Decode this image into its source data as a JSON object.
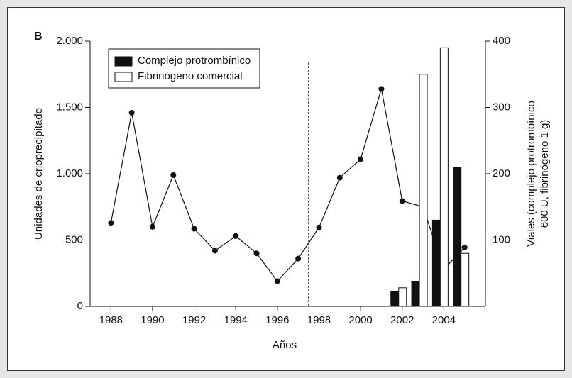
{
  "chart_data": {
    "type": "line-bar",
    "panel_label": "B",
    "x_label": "Años",
    "y_label": "Unidades de crioprecipitado",
    "y2_label": [
      "Viales (complejo protrombínico",
      "600 U, fibrinógeno 1 g)"
    ],
    "xlim": [
      1987,
      2006
    ],
    "xticks": [
      1988,
      1990,
      1992,
      1994,
      1996,
      1998,
      2000,
      2002,
      2004
    ],
    "ylim": [
      0,
      2000
    ],
    "yticks": [
      0,
      500,
      {
        "value": 1000,
        "label": "1.000"
      },
      {
        "value": 1500,
        "label": "1.500"
      },
      {
        "value": 2000,
        "label": "2.000"
      }
    ],
    "y2lim": [
      0,
      400
    ],
    "y2ticks": [
      100,
      200,
      300,
      400
    ],
    "vline_x": 1997.5,
    "line": {
      "x": [
        1988,
        1989,
        1990,
        1991,
        1992,
        1993,
        1994,
        1995,
        1996,
        1997,
        1998,
        1999,
        2000,
        2001,
        2002,
        2003,
        2004,
        2005
      ],
      "values": [
        630,
        1460,
        600,
        990,
        585,
        420,
        530,
        400,
        190,
        360,
        595,
        970,
        1110,
        1640,
        795,
        750,
        280,
        445
      ],
      "color": "#111"
    },
    "bar_x": [
      2002,
      2003,
      2004,
      2005
    ],
    "series": [
      {
        "name": "Complejo protrombínico",
        "color": "#111",
        "axis": "y2",
        "values": [
          22,
          38,
          130,
          210
        ]
      },
      {
        "name": "Fibrinógeno comercial",
        "color": "#fff",
        "axis": "y2",
        "values": [
          28,
          350,
          390,
          80
        ]
      }
    ]
  }
}
